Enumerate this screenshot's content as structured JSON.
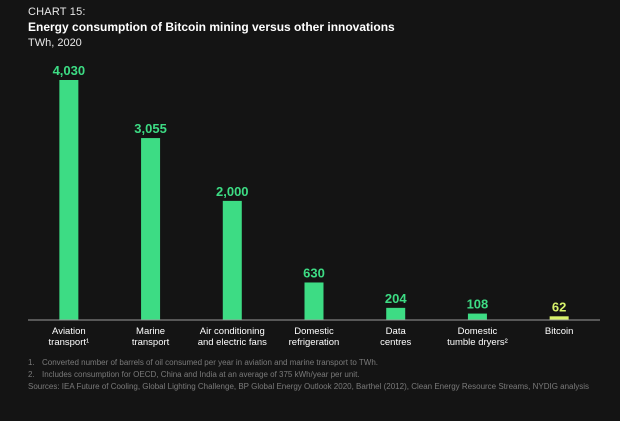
{
  "header": {
    "chart_number": "CHART 15:",
    "title": "Energy consumption of Bitcoin mining versus other innovations",
    "unit": "TWh, 2020"
  },
  "chart_data": {
    "type": "bar",
    "title": "Energy consumption of Bitcoin mining versus other innovations",
    "ylabel": "TWh, 2020",
    "categories": [
      [
        "Aviation",
        "transport¹"
      ],
      [
        "Marine",
        "transport"
      ],
      [
        "Air conditioning",
        "and electric fans"
      ],
      [
        "Domestic",
        "refrigeration"
      ],
      [
        "Data",
        "centres"
      ],
      [
        "Domestic",
        "tumble dryers²"
      ],
      [
        "Bitcoin"
      ]
    ],
    "values": [
      4030,
      3055,
      2000,
      630,
      204,
      108,
      62
    ],
    "value_labels": [
      "4,030",
      "3,055",
      "2,000",
      "630",
      "204",
      "108",
      "62"
    ],
    "ylim": [
      0,
      4030
    ],
    "grid": false,
    "colors": {
      "bar": "#3ddc84",
      "highlight_bar": "#d8f36b",
      "value_label": "#3ddc84",
      "highlight_label": "#d8f36b",
      "axis": "#9a9a9a"
    },
    "highlight_index": 6
  },
  "notes": [
    {
      "num": "1.",
      "text": "Converted number of barrels of oil consumed per year in aviation and marine transport to TWh."
    },
    {
      "num": "2.",
      "text": "Includes consumption for OECD, China and India at an average of 375 kWh/year per unit."
    }
  ],
  "sources": "Sources: IEA Future of Cooling, Global Lighting Challenge, BP Global Energy Outlook 2020, Barthel (2012), Clean Energy Resource Streams, NYDIG analysis"
}
